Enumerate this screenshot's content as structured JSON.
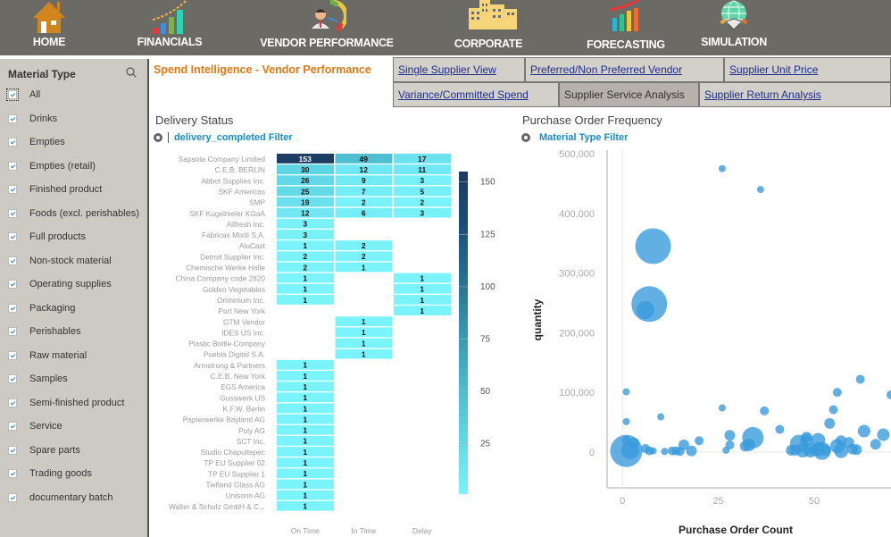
{
  "nav": [
    {
      "label": "HOME",
      "icon": "house-icon"
    },
    {
      "label": "FINANCIALS",
      "icon": "growth-bars-icon"
    },
    {
      "label": "VENDOR PERFORMANCE",
      "icon": "vendor-gauge-icon"
    },
    {
      "label": "CORPORATE",
      "icon": "buildings-icon"
    },
    {
      "label": "FORECASTING",
      "icon": "forecast-bars-icon"
    },
    {
      "label": "SIMULATION",
      "icon": "globe-handshake-icon"
    }
  ],
  "sidebar": {
    "title": "Material Type",
    "search_icon": "search-icon",
    "items": [
      {
        "label": "All",
        "checked": true
      },
      {
        "label": "Drinks",
        "checked": true
      },
      {
        "label": "Empties",
        "checked": true
      },
      {
        "label": "Empties (retail)",
        "checked": true
      },
      {
        "label": "Finished product",
        "checked": true
      },
      {
        "label": "Foods (excl. perishables)",
        "checked": true
      },
      {
        "label": "Full products",
        "checked": true
      },
      {
        "label": "Non-stock material",
        "checked": true
      },
      {
        "label": "Operating supplies",
        "checked": true
      },
      {
        "label": "Packaging",
        "checked": true
      },
      {
        "label": "Perishables",
        "checked": true
      },
      {
        "label": "Raw material",
        "checked": true
      },
      {
        "label": "Samples",
        "checked": true
      },
      {
        "label": "Semi-finished product",
        "checked": true
      },
      {
        "label": "Service",
        "checked": true
      },
      {
        "label": "Spare parts",
        "checked": true
      },
      {
        "label": "Trading goods",
        "checked": true
      },
      {
        "label": "documentary batch",
        "checked": true
      }
    ]
  },
  "page_title": "Spend Intelligence - Vendor Performance",
  "tabs": [
    {
      "label": "Single Supplier View",
      "active": false
    },
    {
      "label": "Preferred/Non Preferred Vendor",
      "active": false
    },
    {
      "label": "Supplier Unit Price",
      "active": false
    },
    {
      "label": "Variance/Committed Spend",
      "active": false
    },
    {
      "label": "Supplier Service Analysis",
      "active": true
    },
    {
      "label": "Supplier Return Analysis",
      "active": false
    }
  ],
  "delivery": {
    "title": "Delivery Status",
    "filter": "delivery_completed Filter"
  },
  "po_freq": {
    "title": "Purchase Order Frequency",
    "filter": "Material Type Filter"
  },
  "chart_data": [
    {
      "type": "heatmap",
      "title": "Delivery Status",
      "columns": [
        "On Time",
        "In Time",
        "Delay"
      ],
      "rows": [
        "Sapsota Company Limited",
        "C.E.B. BERLIN",
        "Abbot Supplies Inc.",
        "SKF Americas",
        "SMP",
        "SKF Kugelmeier KGaA",
        "Allfresh Inc.",
        "Fabricas Mixtli S.A.",
        "AluCast",
        "Detroit Supplier Inc.",
        "Chemische Werke Halle",
        "China Company code 2820",
        "Golden Vegetables",
        "Omnimum Inc.",
        "Port New York",
        "GTM Vendor",
        "IDES US Inc.",
        "Plastic Bottle Company",
        "Puebla Digital S.A.",
        "Armstrong & Partners",
        "C.E.B. New York",
        "EGS America",
        "Gusswerk US",
        "K.F.W. Berlin",
        "Papierwerke Bayland AG",
        "Poly AG",
        "SCT Inc.",
        "Studio Chapultepec",
        "TP EU Supplier 02",
        "TP EU Supplier 1",
        "Tiefland Glass AG",
        "Unisono AG",
        "Walter & Schulz GmbH & C..."
      ],
      "values": [
        [
          153,
          49,
          17
        ],
        [
          30,
          12,
          11
        ],
        [
          26,
          9,
          3
        ],
        [
          25,
          7,
          5
        ],
        [
          19,
          2,
          2
        ],
        [
          12,
          6,
          3
        ],
        [
          3,
          null,
          null
        ],
        [
          3,
          null,
          null
        ],
        [
          1,
          2,
          null
        ],
        [
          2,
          2,
          null
        ],
        [
          2,
          1,
          null
        ],
        [
          1,
          null,
          1
        ],
        [
          1,
          null,
          1
        ],
        [
          1,
          null,
          1
        ],
        [
          null,
          null,
          1
        ],
        [
          null,
          1,
          null
        ],
        [
          null,
          1,
          null
        ],
        [
          null,
          1,
          null
        ],
        [
          null,
          1,
          null
        ],
        [
          1,
          null,
          null
        ],
        [
          1,
          null,
          null
        ],
        [
          1,
          null,
          null
        ],
        [
          1,
          null,
          null
        ],
        [
          1,
          null,
          null
        ],
        [
          1,
          null,
          null
        ],
        [
          1,
          null,
          null
        ],
        [
          1,
          null,
          null
        ],
        [
          1,
          null,
          null
        ],
        [
          1,
          null,
          null
        ],
        [
          1,
          null,
          null
        ],
        [
          1,
          null,
          null
        ],
        [
          1,
          null,
          null
        ],
        [
          1,
          null,
          null
        ]
      ],
      "legend": {
        "ticks": [
          25,
          50,
          75,
          100,
          125,
          150
        ],
        "range": [
          1,
          155
        ],
        "color_low": "#7af3fb",
        "color_high": "#1c3a62"
      }
    },
    {
      "type": "scatter",
      "title": "Purchase Order Frequency",
      "xlabel": "Purchase Order Count",
      "ylabel": "quantity",
      "xlim": [
        -4,
        70
      ],
      "ylim": [
        -60000,
        500000
      ],
      "xticks": [
        0,
        25,
        50
      ],
      "yticks": [
        0,
        100000,
        200000,
        300000,
        400000,
        500000
      ],
      "ytick_labels": [
        "0",
        "100,000",
        "200,000",
        "300,000",
        "400,000",
        "500,000"
      ],
      "xtick_labels": [
        "0",
        "25",
        "50"
      ],
      "color": "#3a9bdc",
      "points": [
        {
          "x": 26,
          "y": 475000,
          "s": 2
        },
        {
          "x": 36,
          "y": 440000,
          "s": 2
        },
        {
          "x": 8,
          "y": 345000,
          "s": 10
        },
        {
          "x": 7,
          "y": 248000,
          "s": 10
        },
        {
          "x": 6,
          "y": 238000,
          "s": 5
        },
        {
          "x": 1,
          "y": 101000,
          "s": 2
        },
        {
          "x": 1,
          "y": 51000,
          "s": 2
        },
        {
          "x": 10,
          "y": 59000,
          "s": 2
        },
        {
          "x": 26,
          "y": 74000,
          "s": 2
        },
        {
          "x": 37,
          "y": 69000,
          "s": 2.5
        },
        {
          "x": 41,
          "y": 38000,
          "s": 2.5
        },
        {
          "x": 1,
          "y": 2000,
          "s": 9
        },
        {
          "x": 1,
          "y": 20000,
          "s": 2.5
        },
        {
          "x": 3,
          "y": 15000,
          "s": 3
        },
        {
          "x": 2,
          "y": 3000,
          "s": 5
        },
        {
          "x": 6,
          "y": 6000,
          "s": 2.5
        },
        {
          "x": 7,
          "y": 2000,
          "s": 2.5
        },
        {
          "x": 8,
          "y": 2000,
          "s": 2
        },
        {
          "x": 11,
          "y": 1000,
          "s": 2
        },
        {
          "x": 13,
          "y": 2000,
          "s": 2.5
        },
        {
          "x": 14,
          "y": 2000,
          "s": 2.5
        },
        {
          "x": 15,
          "y": 1000,
          "s": 2.5
        },
        {
          "x": 16,
          "y": 12000,
          "s": 3
        },
        {
          "x": 18,
          "y": 2000,
          "s": 3
        },
        {
          "x": 20,
          "y": 19000,
          "s": 2.5
        },
        {
          "x": 27,
          "y": 3000,
          "s": 2
        },
        {
          "x": 28,
          "y": 28000,
          "s": 3
        },
        {
          "x": 28,
          "y": 12000,
          "s": 2.5
        },
        {
          "x": 32,
          "y": 10000,
          "s": 3
        },
        {
          "x": 33,
          "y": 12000,
          "s": 3.5
        },
        {
          "x": 34,
          "y": 24000,
          "s": 6
        },
        {
          "x": 44,
          "y": 3000,
          "s": 3
        },
        {
          "x": 46,
          "y": 14000,
          "s": 5
        },
        {
          "x": 47,
          "y": 3000,
          "s": 4
        },
        {
          "x": 48,
          "y": 25000,
          "s": 3
        },
        {
          "x": 48,
          "y": 20000,
          "s": 3.5
        },
        {
          "x": 49,
          "y": 3000,
          "s": 4
        },
        {
          "x": 51,
          "y": 20000,
          "s": 4
        },
        {
          "x": 51,
          "y": 5000,
          "s": 4
        },
        {
          "x": 52,
          "y": 2000,
          "s": 5
        },
        {
          "x": 54,
          "y": 48000,
          "s": 3
        },
        {
          "x": 55,
          "y": 71000,
          "s": 2.5
        },
        {
          "x": 56,
          "y": 100000,
          "s": 2.5
        },
        {
          "x": 56,
          "y": 10000,
          "s": 4
        },
        {
          "x": 57,
          "y": 19000,
          "s": 3
        },
        {
          "x": 57,
          "y": 2000,
          "s": 4
        },
        {
          "x": 59,
          "y": 16000,
          "s": 3
        },
        {
          "x": 60,
          "y": 5000,
          "s": 3
        },
        {
          "x": 61,
          "y": 4000,
          "s": 3
        },
        {
          "x": 62,
          "y": 122000,
          "s": 2.5
        },
        {
          "x": 63,
          "y": 35000,
          "s": 3.5
        },
        {
          "x": 66,
          "y": 13000,
          "s": 3
        },
        {
          "x": 68,
          "y": 29000,
          "s": 3.5
        },
        {
          "x": 70,
          "y": 96000,
          "s": 2.5
        },
        {
          "x": 45,
          "y": 3000,
          "s": 3
        },
        {
          "x": 50,
          "y": 3000,
          "s": 3
        },
        {
          "x": 53,
          "y": 3000,
          "s": 3
        }
      ]
    }
  ]
}
